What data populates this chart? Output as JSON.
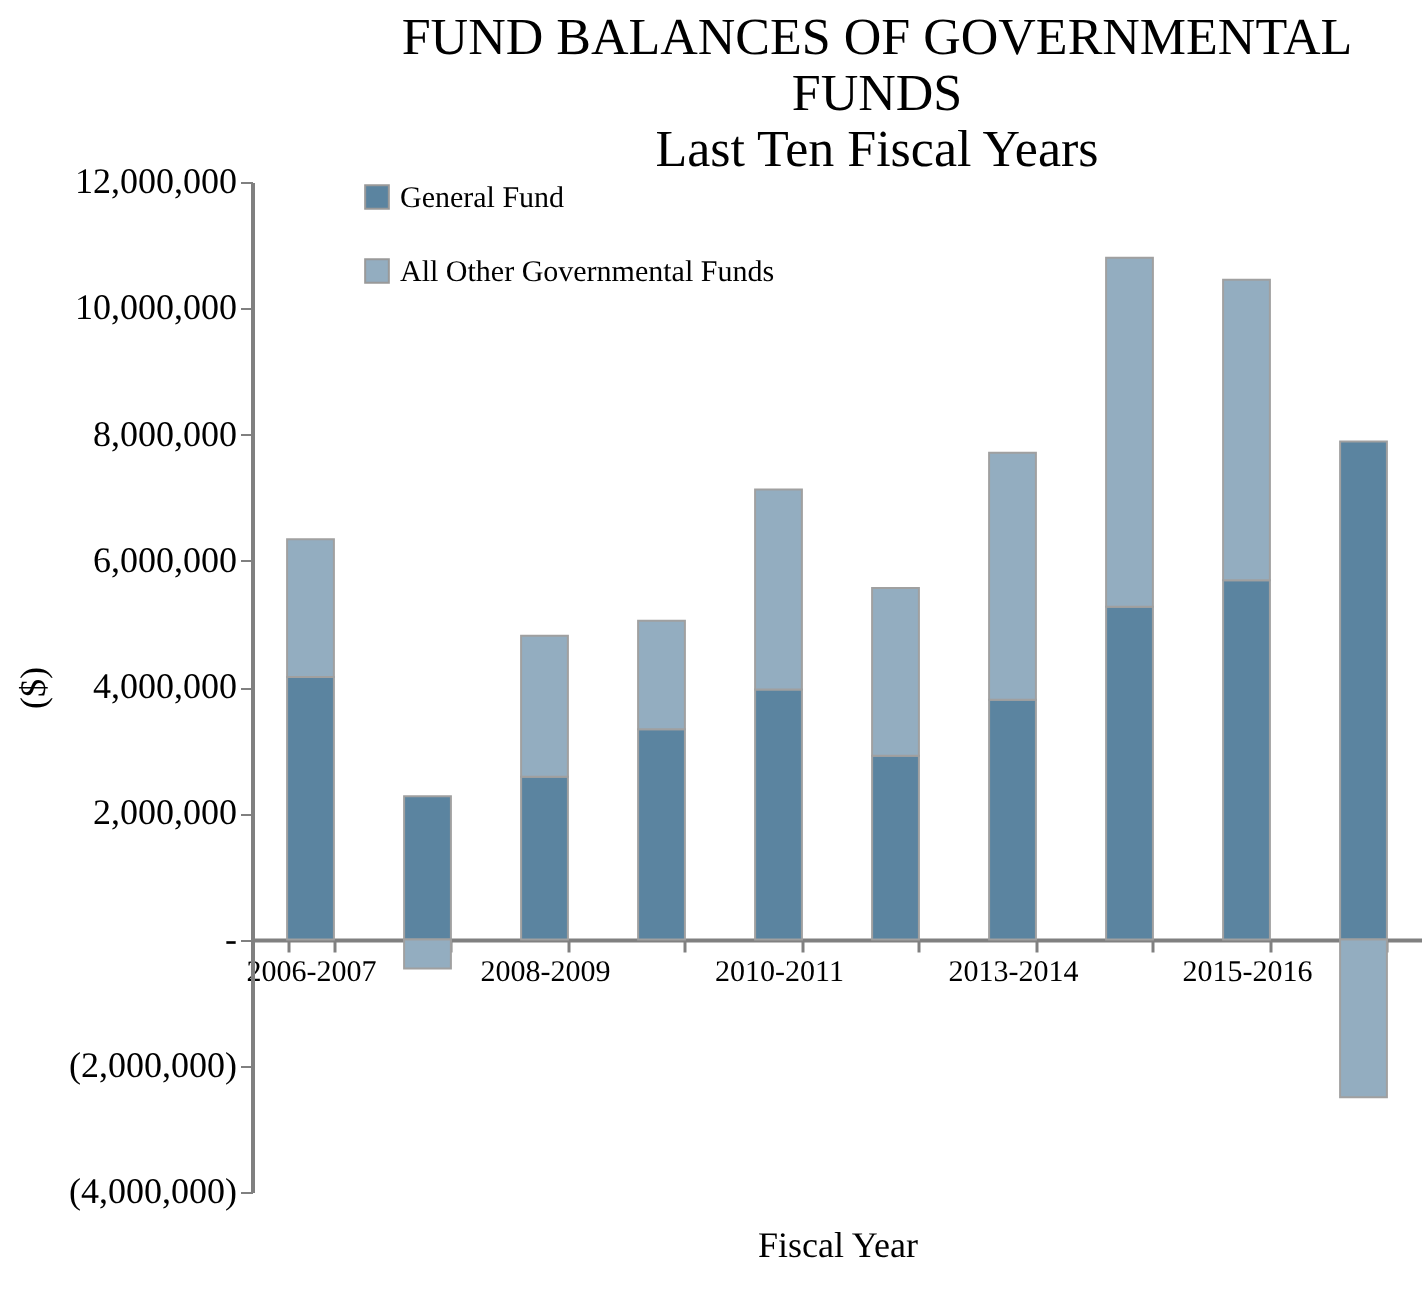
{
  "chart_data": {
    "type": "bar",
    "title": "FUND BALANCES OF GOVERNMENTAL FUNDS",
    "subtitle": "Last Ten Fiscal Years",
    "xlabel": "Fiscal Year",
    "ylabel": "($)",
    "categories": [
      "2006-2007",
      null,
      "2008-2009",
      null,
      "2010-2011",
      null,
      "2013-2014",
      null,
      "2015-2016",
      null
    ],
    "stacked": true,
    "series": [
      {
        "name": "General Fund",
        "color": "#5b84a0",
        "values": [
          4160000,
          2270000,
          2580000,
          3330000,
          3960000,
          2910000,
          3800000,
          5270000,
          5690000,
          7890000
        ]
      },
      {
        "name": "All Other Governmental Funds",
        "color": "#93adc0",
        "values": [
          2180000,
          -460000,
          2230000,
          1720000,
          3170000,
          2660000,
          3910000,
          5530000,
          4760000,
          -2500000
        ]
      }
    ],
    "ylim": [
      -4000000,
      12000000
    ],
    "yticks": [
      {
        "value": -4000000,
        "label": "(4,000,000)"
      },
      {
        "value": -2000000,
        "label": "(2,000,000)"
      },
      {
        "value": 0,
        "label": "-"
      },
      {
        "value": 2000000,
        "label": "2,000,000"
      },
      {
        "value": 4000000,
        "label": "4,000,000"
      },
      {
        "value": 6000000,
        "label": "6,000,000"
      },
      {
        "value": 8000000,
        "label": "8,000,000"
      },
      {
        "value": 10000000,
        "label": "10,000,000"
      },
      {
        "value": 12000000,
        "label": "12,000,000"
      }
    ],
    "grid": false,
    "legend": "top left"
  }
}
